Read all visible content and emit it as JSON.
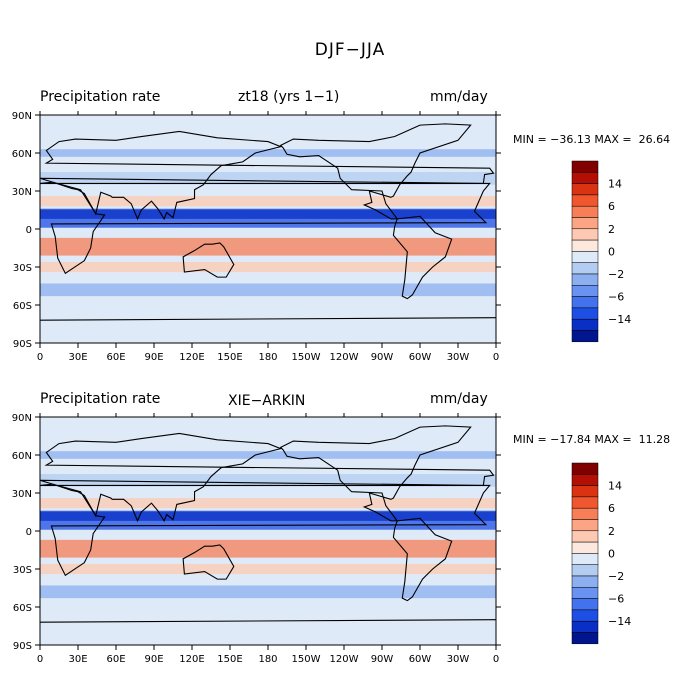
{
  "title": "DJF−JJA",
  "colorbar": {
    "colors": [
      "#800000",
      "#b30f04",
      "#d93311",
      "#f0572e",
      "#f77e57",
      "#fba585",
      "#fdc9b2",
      "#fce8dc",
      "#deeaf7",
      "#b3ccf2",
      "#8caff0",
      "#6a92f0",
      "#4272ee",
      "#1d4fe5",
      "#0a2fc4",
      "#00158f"
    ],
    "labels": [
      "14",
      "6",
      "2",
      "0",
      "−2",
      "−6",
      "−14"
    ]
  },
  "x_ticks": [
    "0",
    "30E",
    "60E",
    "90E",
    "120E",
    "150E",
    "180",
    "150W",
    "120W",
    "90W",
    "60W",
    "30W",
    "0"
  ],
  "y_ticks": [
    "90N",
    "60N",
    "30N",
    "0",
    "30S",
    "60S",
    "90S"
  ],
  "panels": [
    {
      "variable": "Precipitation rate",
      "source": "zt18 (yrs 1−1)",
      "units": "mm/day",
      "stats": "MIN = −36.13 MAX =  26.64"
    },
    {
      "variable": "Precipitation rate",
      "source": "XIE−ARKIN",
      "units": "mm/day",
      "stats": "MIN = −17.84 MAX =  11.28"
    }
  ]
}
